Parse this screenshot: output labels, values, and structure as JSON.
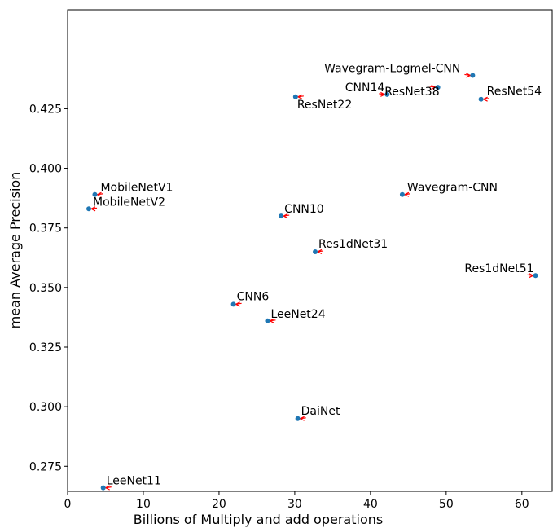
{
  "chart_data": {
    "type": "scatter",
    "xlabel": "Billions of Multiply and add operations",
    "ylabel": "mean Average Precision",
    "xlim": [
      0,
      64
    ],
    "ylim": [
      0.2645,
      0.4665
    ],
    "xticks": [
      0,
      10,
      20,
      30,
      40,
      50,
      60
    ],
    "yticks": [
      0.275,
      0.3,
      0.325,
      0.35,
      0.375,
      0.4,
      0.425
    ],
    "ytick_labels": [
      "0.275",
      "0.300",
      "0.325",
      "0.350",
      "0.375",
      "0.400",
      "0.425"
    ],
    "grid": false,
    "point_color": "#1f77b4",
    "arrow_color": "#ff0000",
    "points": [
      {
        "label": "Wavegram-Logmel-CNN",
        "x": 53.5,
        "y": 0.439
      },
      {
        "label": "CNN14",
        "x": 42.2,
        "y": 0.431
      },
      {
        "label": "ResNet38",
        "x": 48.9,
        "y": 0.434
      },
      {
        "label": "ResNet54",
        "x": 54.6,
        "y": 0.429
      },
      {
        "label": "ResNet22",
        "x": 30.1,
        "y": 0.43
      },
      {
        "label": "MobileNetV1",
        "x": 3.6,
        "y": 0.389
      },
      {
        "label": "MobileNetV2",
        "x": 2.8,
        "y": 0.383
      },
      {
        "label": "Wavegram-CNN",
        "x": 44.2,
        "y": 0.389
      },
      {
        "label": "CNN10",
        "x": 28.2,
        "y": 0.38
      },
      {
        "label": "Res1dNet31",
        "x": 32.7,
        "y": 0.365
      },
      {
        "label": "Res1dNet51",
        "x": 61.8,
        "y": 0.355
      },
      {
        "label": "CNN6",
        "x": 21.9,
        "y": 0.343
      },
      {
        "label": "LeeNet24",
        "x": 26.4,
        "y": 0.336
      },
      {
        "label": "DaiNet",
        "x": 30.4,
        "y": 0.295
      },
      {
        "label": "LeeNet11",
        "x": 4.7,
        "y": 0.266
      }
    ]
  }
}
